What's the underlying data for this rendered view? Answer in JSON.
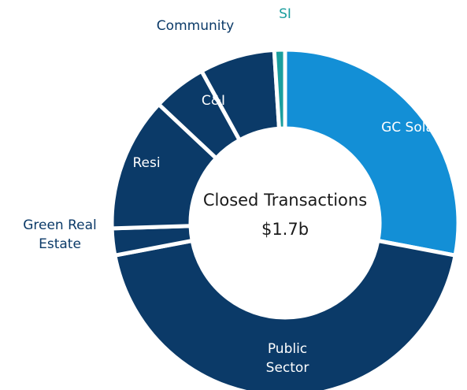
{
  "chart_data": {
    "type": "donut",
    "center_title": "Closed Transactions",
    "center_value": "$1.7b",
    "categories": [
      "GC Solar",
      "Public Sector",
      "Green Real Estate",
      "Resi",
      "C&I",
      "Community",
      "SI"
    ],
    "values": [
      28,
      44,
      2.5,
      12.5,
      5,
      7,
      1
    ],
    "colors": [
      "#138fd6",
      "#0b3a68",
      "#0b3a68",
      "#0b3a68",
      "#0b3a68",
      "#0b3a68",
      "#1a9e9e"
    ],
    "label_colors": [
      "#ffffff",
      "#ffffff",
      "#0b3a68",
      "#ffffff",
      "#ffffff",
      "#0b3a68",
      "#1a9e9e"
    ]
  }
}
